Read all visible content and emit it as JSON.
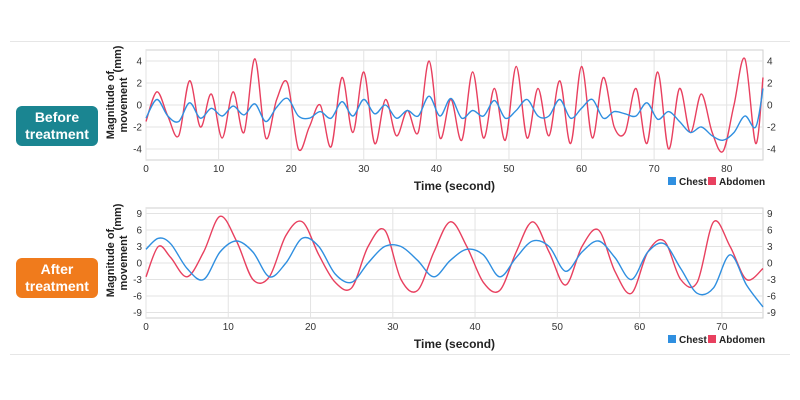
{
  "badges": {
    "before": [
      "Before",
      "treatment"
    ],
    "after": [
      "After",
      "treatment"
    ]
  },
  "colors": {
    "chest": "#2f8fe0",
    "abdomen": "#e8405f",
    "grid": "#e3e3e3",
    "badge_before": "#1a8591",
    "badge_after": "#f07b1c"
  },
  "chart_data": [
    {
      "type": "line",
      "name": "before",
      "xlabel": "Time (second)",
      "ylabel": [
        "Magnitude of",
        "movement",
        "(mm)"
      ],
      "xlim": [
        0,
        85
      ],
      "ylim": [
        -5,
        5
      ],
      "xticks": [
        0,
        10,
        20,
        30,
        40,
        50,
        60,
        70,
        80
      ],
      "yticks_left": [
        4,
        2,
        0,
        -2,
        -4
      ],
      "yticks_right": [
        4,
        2,
        0,
        -2,
        -4
      ],
      "grid": true,
      "legend": {
        "position": "bottom-right",
        "entries": [
          "Chest",
          "Abdomen"
        ]
      },
      "series": [
        {
          "name": "Chest",
          "x": [
            0,
            1.5,
            3,
            4.5,
            6,
            7.5,
            9,
            10.5,
            12,
            13.5,
            15,
            16.5,
            18,
            19.5,
            21,
            22.5,
            24,
            25.5,
            27,
            28.5,
            30,
            31.5,
            33,
            34.5,
            36,
            37.5,
            39,
            40.5,
            42,
            43.5,
            45,
            46.5,
            48,
            49.5,
            51,
            52.5,
            54,
            55.5,
            57,
            58.5,
            60,
            61.5,
            63,
            64.5,
            66,
            67.5,
            69,
            70.5,
            72,
            73.5,
            75,
            76.5,
            78,
            79.5,
            81,
            82.5,
            84,
            85
          ],
          "values": [
            -1.2,
            0.5,
            -1.0,
            -1.5,
            0.2,
            -1.2,
            -0.3,
            -1.0,
            -0.1,
            -0.9,
            0.1,
            -1.5,
            -0.2,
            0.6,
            -1.0,
            -1.2,
            -0.6,
            -1.2,
            0.3,
            -1.0,
            0.5,
            -0.8,
            0.0,
            -1.2,
            -0.5,
            -1.0,
            0.8,
            -1.0,
            0.6,
            -1.2,
            -0.5,
            -1.0,
            0.4,
            -1.2,
            -0.5,
            0.5,
            -1.0,
            -1.0,
            0.5,
            -1.2,
            -0.3,
            0.5,
            -1.2,
            -0.6,
            -0.8,
            -1.0,
            0.2,
            -1.3,
            -0.6,
            -1.5,
            -2.5,
            -2.0,
            -2.8,
            -3.2,
            -2.5,
            -1.0,
            -2.0,
            1.5
          ]
        },
        {
          "name": "Abdomen",
          "x": [
            0,
            1.5,
            3,
            4.5,
            6,
            7.5,
            9,
            10.5,
            12,
            13.5,
            15,
            16.5,
            18,
            19.5,
            21,
            22.5,
            24,
            25.5,
            27,
            28.5,
            30,
            31.5,
            33,
            34.5,
            36,
            37.5,
            39,
            40.5,
            42,
            43.5,
            45,
            46.5,
            48,
            49.5,
            51,
            52.5,
            54,
            55.5,
            57,
            58.5,
            60,
            61.5,
            63,
            64.5,
            66,
            67.5,
            69,
            70.5,
            72,
            73.5,
            75,
            76.5,
            78,
            79.5,
            81,
            82.5,
            84,
            85
          ],
          "values": [
            -1.5,
            1.2,
            -1.0,
            -2.8,
            2.2,
            -2.0,
            1.0,
            -3.0,
            1.2,
            -2.5,
            4.2,
            -3.0,
            0.5,
            2.0,
            -4.0,
            -2.0,
            0.0,
            -3.8,
            2.5,
            -2.5,
            3.0,
            -3.5,
            0.5,
            -2.8,
            -0.5,
            -2.5,
            4.0,
            -3.0,
            0.5,
            -3.2,
            3.0,
            -3.0,
            1.5,
            -3.2,
            3.5,
            -3.0,
            1.5,
            -2.8,
            2.2,
            -3.5,
            3.5,
            -3.0,
            2.5,
            -2.0,
            -2.5,
            1.5,
            -3.5,
            3.0,
            -4.0,
            1.5,
            -2.5,
            1.0,
            -2.5,
            -4.2,
            0.0,
            4.2,
            -3.5,
            2.5
          ]
        }
      ]
    },
    {
      "type": "line",
      "name": "after",
      "xlabel": "Time (second)",
      "ylabel": [
        "Magnitude of",
        "movement",
        "(mm)"
      ],
      "xlim": [
        0,
        75
      ],
      "ylim": [
        -10,
        10
      ],
      "xticks": [
        0,
        10,
        20,
        30,
        40,
        50,
        60,
        70
      ],
      "yticks_left": [
        9,
        6,
        3,
        0,
        -3,
        -6,
        -9
      ],
      "yticks_right": [
        9,
        6,
        3,
        0,
        -3,
        -6,
        -9
      ],
      "grid": true,
      "legend": {
        "position": "bottom-right",
        "entries": [
          "Chest",
          "Abdomen"
        ]
      },
      "series": [
        {
          "name": "Chest",
          "x": [
            0,
            1.5,
            3,
            5,
            7,
            9,
            11,
            13,
            15,
            17,
            19,
            21,
            23,
            25,
            27,
            29,
            31,
            33,
            35,
            37,
            39,
            41,
            43,
            45,
            47,
            49,
            51,
            53,
            55,
            57,
            59,
            61,
            63,
            65,
            67,
            69,
            71,
            73,
            75
          ],
          "values": [
            2.5,
            4.5,
            3.5,
            -1.0,
            -3.0,
            2.0,
            4.0,
            2.0,
            -2.5,
            0.0,
            4.5,
            3.0,
            -2.0,
            -3.5,
            0.0,
            3.0,
            3.0,
            0.5,
            -2.5,
            0.5,
            2.5,
            1.5,
            -2.5,
            1.0,
            4.0,
            3.0,
            -1.5,
            2.0,
            4.0,
            1.0,
            -3.0,
            2.0,
            3.5,
            -1.0,
            -5.5,
            -4.5,
            1.5,
            -4.0,
            -8.0
          ]
        },
        {
          "name": "Abdomen",
          "x": [
            0,
            1.5,
            3,
            5,
            7,
            9,
            11,
            13,
            15,
            17,
            19,
            21,
            23,
            25,
            27,
            29,
            31,
            33,
            35,
            37,
            39,
            41,
            43,
            45,
            47,
            49,
            51,
            53,
            55,
            57,
            59,
            61,
            63,
            65,
            67,
            69,
            71,
            73,
            75
          ],
          "values": [
            -2.5,
            3.0,
            1.0,
            -2.5,
            2.0,
            8.5,
            4.0,
            -3.0,
            -2.5,
            5.0,
            7.5,
            1.5,
            -3.5,
            -4.5,
            3.0,
            6.0,
            -3.0,
            -5.0,
            2.0,
            7.5,
            3.0,
            -3.5,
            -5.0,
            2.0,
            7.5,
            2.0,
            -4.0,
            3.0,
            6.0,
            -1.5,
            -5.5,
            2.0,
            4.0,
            -3.0,
            -3.5,
            7.5,
            3.0,
            -3.0,
            -1.0
          ]
        }
      ]
    }
  ]
}
